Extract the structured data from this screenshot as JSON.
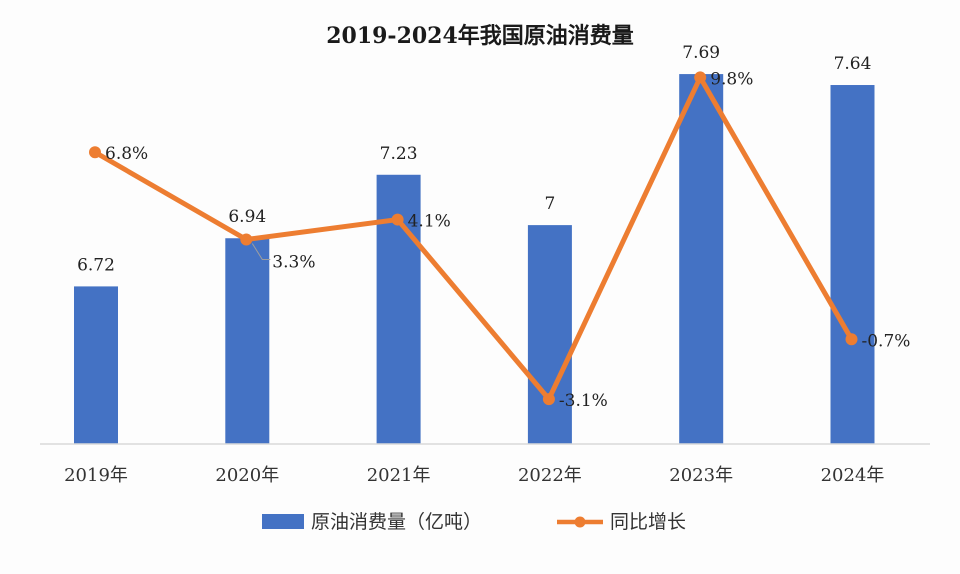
{
  "chart_data": {
    "type": "bar+line",
    "title": "2019-2024年我国原油消费量",
    "categories": [
      "2019年",
      "2020年",
      "2021年",
      "2022年",
      "2023年",
      "2024年"
    ],
    "series": [
      {
        "name": "原油消费量（亿吨）",
        "type": "bar",
        "color": "#4472C4",
        "values": [
          6.72,
          6.94,
          7.23,
          7,
          7.69,
          7.64
        ],
        "labels": [
          "6.72",
          "6.94",
          "7.23",
          "7",
          "7.69",
          "7.64"
        ]
      },
      {
        "name": "同比增长",
        "type": "line",
        "color": "#ED7D31",
        "values": [
          6.8,
          3.3,
          4.1,
          -3.1,
          9.8,
          -0.7
        ],
        "labels": [
          "6.8%",
          "3.3%",
          "4.1%",
          "-3.1%",
          "9.8%",
          "-0.7%"
        ]
      }
    ],
    "bar_axis": {
      "ylim": [
        6.0,
        7.8
      ]
    },
    "line_axis": {
      "ylim": [
        -4.9,
        10.9
      ]
    },
    "grid": false,
    "legend_position": "bottom"
  }
}
